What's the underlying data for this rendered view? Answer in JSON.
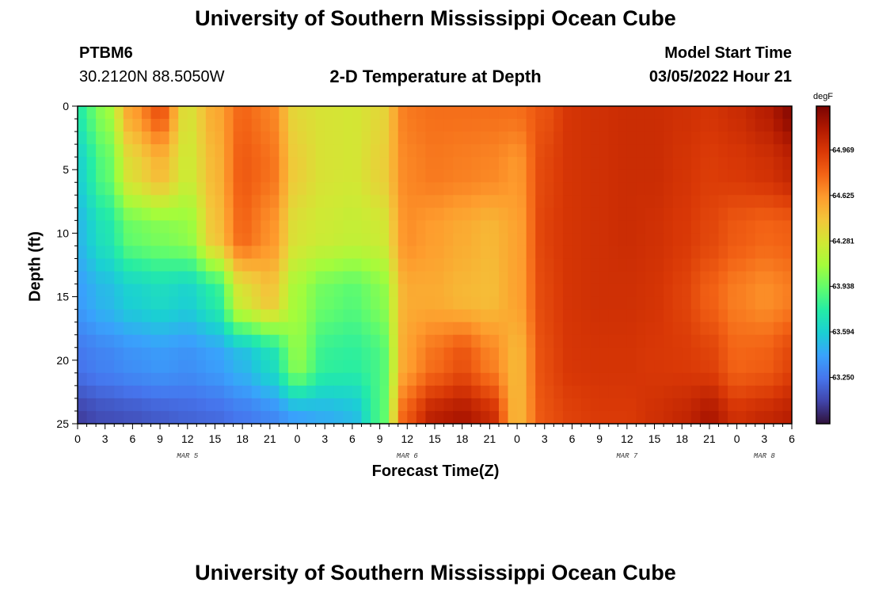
{
  "header": {
    "title": "University of Southern Mississippi Ocean Cube",
    "station": "PTBM6",
    "coords": "30.2120N  88.5050W",
    "subtitle": "2-D Temperature at Depth",
    "model_start_label": "Model Start Time",
    "model_start_value": "03/05/2022 Hour 21"
  },
  "footer": {
    "title": "University of Southern Mississippi Ocean Cube"
  },
  "chart_data": {
    "type": "heatmap",
    "title": "2-D Temperature at Depth",
    "xlabel": "Forecast Time(Z)",
    "ylabel": "Depth (ft)",
    "x_unit": "hours",
    "xlim": [
      0,
      78
    ],
    "ylim": [
      25,
      0
    ],
    "x_ticks": [
      0,
      3,
      6,
      9,
      12,
      15,
      18,
      21,
      24,
      27,
      30,
      33,
      36,
      39,
      42,
      45,
      48,
      51,
      54,
      57,
      60,
      63,
      66,
      69,
      72,
      75,
      78
    ],
    "x_tick_labels": [
      "0",
      "3",
      "6",
      "9",
      "12",
      "15",
      "18",
      "21",
      "0",
      "3",
      "6",
      "9",
      "12",
      "15",
      "18",
      "21",
      "0",
      "3",
      "6",
      "9",
      "12",
      "15",
      "18",
      "21",
      "0",
      "3",
      "6"
    ],
    "day_labels": [
      {
        "text": "MAR 5",
        "x": 12
      },
      {
        "text": "MAR 6",
        "x": 36
      },
      {
        "text": "MAR 7",
        "x": 60
      },
      {
        "text": "MAR 8",
        "x": 75
      }
    ],
    "y_ticks": [
      0,
      5,
      10,
      15,
      20,
      25
    ],
    "colorbar": {
      "unit": "degF",
      "min": 62.9,
      "max": 65.3,
      "ticks": [
        63.25,
        63.594,
        63.938,
        64.281,
        64.625,
        64.969
      ],
      "tick_labels": [
        "63.250",
        "63.594",
        "63.938",
        "64.281",
        "64.625",
        "64.969"
      ],
      "colors": [
        "#30123b",
        "#4145ab",
        "#4675ed",
        "#39a2fc",
        "#1bcfd4",
        "#24eca6",
        "#61fc6c",
        "#a4fc3b",
        "#d1e834",
        "#f3c63a",
        "#fe9b2d",
        "#f36315",
        "#d93806",
        "#b11901",
        "#7a0402"
      ]
    },
    "depths": [
      0,
      5,
      10,
      15,
      20,
      25
    ],
    "times": [
      0,
      3,
      6,
      9,
      12,
      15,
      18,
      21,
      24,
      27,
      30,
      33,
      36,
      39,
      42,
      45,
      48,
      51,
      54,
      57,
      60,
      63,
      66,
      69,
      72,
      75,
      78
    ],
    "values": [
      [
        63.75,
        64.05,
        64.6,
        64.85,
        64.3,
        64.55,
        64.78,
        64.7,
        64.35,
        64.3,
        64.28,
        64.35,
        64.72,
        64.75,
        64.75,
        64.75,
        64.75,
        64.85,
        64.98,
        65.0,
        65.02,
        65.02,
        65.0,
        64.98,
        65.02,
        65.1,
        65.25
      ],
      [
        63.6,
        63.9,
        64.35,
        64.5,
        64.25,
        64.5,
        64.82,
        64.75,
        64.4,
        64.3,
        64.28,
        64.38,
        64.68,
        64.72,
        64.7,
        64.68,
        64.62,
        64.9,
        64.98,
        65.0,
        65.02,
        65.02,
        64.98,
        64.94,
        64.96,
        64.99,
        65.06
      ],
      [
        63.5,
        63.7,
        63.95,
        64.0,
        64.05,
        64.45,
        64.78,
        64.65,
        64.3,
        64.25,
        64.22,
        64.25,
        64.65,
        64.6,
        64.55,
        64.5,
        64.58,
        64.92,
        64.98,
        65.0,
        65.02,
        65.0,
        64.96,
        64.9,
        64.82,
        64.78,
        64.8
      ],
      [
        63.4,
        63.5,
        63.6,
        63.65,
        63.6,
        63.75,
        64.3,
        64.45,
        64.1,
        63.95,
        63.9,
        64.0,
        64.55,
        64.55,
        64.5,
        64.48,
        64.58,
        64.9,
        64.98,
        65.0,
        65.0,
        64.98,
        64.92,
        64.8,
        64.7,
        64.65,
        64.7
      ],
      [
        63.25,
        63.3,
        63.35,
        63.38,
        63.35,
        63.4,
        63.5,
        63.65,
        64.05,
        63.8,
        63.78,
        63.85,
        64.6,
        64.75,
        64.85,
        64.7,
        64.5,
        64.88,
        64.97,
        64.98,
        64.98,
        64.96,
        64.95,
        64.92,
        64.78,
        64.8,
        64.9
      ],
      [
        63.05,
        63.1,
        63.12,
        63.15,
        63.18,
        63.2,
        63.25,
        63.3,
        63.4,
        63.45,
        63.5,
        63.85,
        64.85,
        65.1,
        65.15,
        65.05,
        64.5,
        64.85,
        64.92,
        64.95,
        64.95,
        65.0,
        65.05,
        65.15,
        65.0,
        65.05,
        65.1
      ]
    ]
  }
}
